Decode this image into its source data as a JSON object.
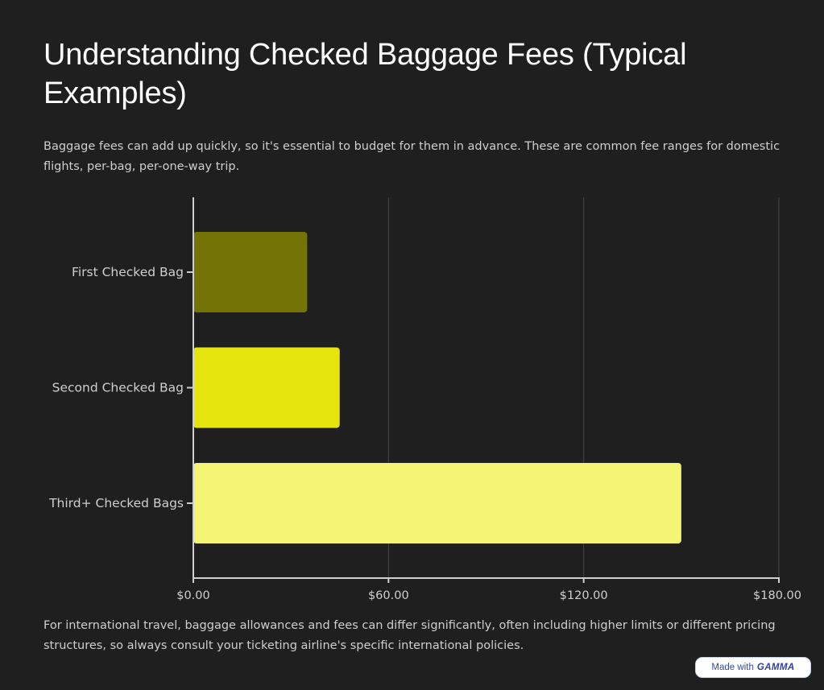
{
  "header": {
    "title": "Understanding Checked Baggage Fees (Typical Examples)",
    "intro": "Baggage fees can add up quickly, so it's essential to budget for them in advance. These are common fee ranges for domestic flights, per-bag, per-one-way trip."
  },
  "chart_data": {
    "type": "bar",
    "orientation": "horizontal",
    "categories": [
      "First Checked Bag",
      "Second Checked Bag",
      "Third+ Checked Bags"
    ],
    "values": [
      35,
      45,
      150
    ],
    "colors": [
      "#737405",
      "#e5e50d",
      "#f5f575"
    ],
    "xticks": [
      "$0.00",
      "$60.00",
      "$120.00",
      "$180.00"
    ],
    "xlim": [
      0,
      180
    ],
    "tick_step": 60,
    "grid": "vertical"
  },
  "footer": {
    "note": "For international travel, baggage allowances and fees can differ significantly, often including higher limits or different pricing structures, so always consult your ticketing airline's specific international policies."
  },
  "badge": {
    "made_with": "Made with",
    "brand": "GAMMA"
  }
}
